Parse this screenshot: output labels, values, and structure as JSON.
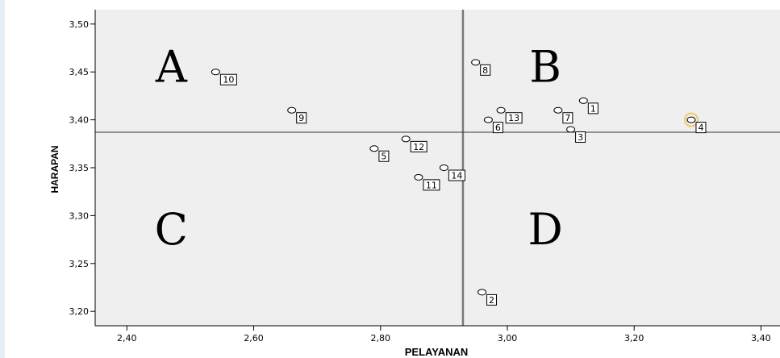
{
  "chart_data": {
    "type": "scatter",
    "xlabel": "PELAYANAN",
    "ylabel": "HARAPAN",
    "xlim": [
      2.35,
      3.43
    ],
    "ylim": [
      3.185,
      3.515
    ],
    "x_ticks": [
      2.4,
      2.6,
      2.8,
      3.0,
      3.2,
      3.4
    ],
    "y_ticks": [
      3.2,
      3.25,
      3.3,
      3.35,
      3.4,
      3.45,
      3.5
    ],
    "x_tick_labels": [
      "2,40",
      "2,60",
      "2,80",
      "3,00",
      "3,20",
      "3,40"
    ],
    "y_tick_labels": [
      "3,20",
      "3,25",
      "3,30",
      "3,35",
      "3,40",
      "3,45",
      "3,50"
    ],
    "x_mean_line": 2.93,
    "y_mean_line": 3.387,
    "grid": false,
    "quadrant_labels": [
      {
        "text": "A",
        "x": 2.47,
        "y": 3.455
      },
      {
        "text": "B",
        "x": 3.06,
        "y": 3.455
      },
      {
        "text": "C",
        "x": 2.47,
        "y": 3.285
      },
      {
        "text": "D",
        "x": 3.06,
        "y": 3.285
      }
    ],
    "points": [
      {
        "label": "1",
        "x": 3.12,
        "y": 3.42
      },
      {
        "label": "2",
        "x": 2.96,
        "y": 3.22
      },
      {
        "label": "3",
        "x": 3.1,
        "y": 3.39
      },
      {
        "label": "4",
        "x": 3.29,
        "y": 3.4,
        "highlight": true
      },
      {
        "label": "5",
        "x": 2.79,
        "y": 3.37
      },
      {
        "label": "6",
        "x": 2.97,
        "y": 3.4
      },
      {
        "label": "7",
        "x": 3.08,
        "y": 3.41
      },
      {
        "label": "8",
        "x": 2.95,
        "y": 3.46
      },
      {
        "label": "9",
        "x": 2.66,
        "y": 3.41
      },
      {
        "label": "10",
        "x": 2.54,
        "y": 3.45
      },
      {
        "label": "11",
        "x": 2.86,
        "y": 3.34
      },
      {
        "label": "12",
        "x": 2.84,
        "y": 3.38
      },
      {
        "label": "13",
        "x": 2.99,
        "y": 3.41
      },
      {
        "label": "14",
        "x": 2.9,
        "y": 3.35
      }
    ],
    "colors": {
      "plot_background": "#efefef",
      "highlight_ring": "#f2c76b",
      "mean_line_x": "#7a7a7a",
      "mean_line_y": "#333333"
    }
  }
}
